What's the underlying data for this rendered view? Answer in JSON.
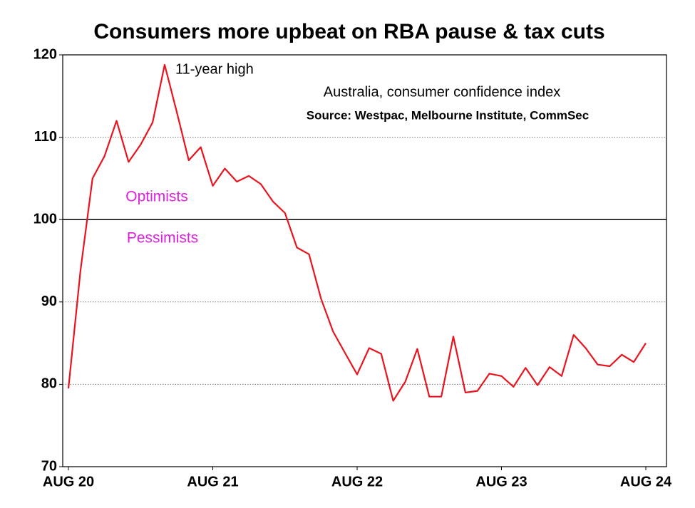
{
  "chart_data": {
    "type": "line",
    "title": "Consumers more upbeat on RBA pause & tax cuts",
    "subtitle": "Australia, consumer confidence index",
    "source": "Source: Westpac, Melbourne Institute, CommSec",
    "annotations": [
      "11-year high",
      "Optimists",
      "Pessimists"
    ],
    "categories": [
      "AUG 20",
      null,
      null,
      null,
      null,
      null,
      null,
      null,
      null,
      null,
      null,
      null,
      "AUG 21",
      null,
      null,
      null,
      null,
      null,
      null,
      null,
      null,
      null,
      null,
      null,
      "AUG 22",
      null,
      null,
      null,
      null,
      null,
      null,
      null,
      null,
      null,
      null,
      null,
      "AUG 23",
      null,
      null,
      null,
      null,
      null,
      null,
      null,
      null,
      null,
      null,
      null,
      "AUG 24"
    ],
    "series": [
      {
        "color": "#e8141e",
        "values": [
          79.5,
          93.8,
          105.0,
          107.7,
          112.0,
          107.0,
          109.1,
          111.8,
          118.8,
          113.1,
          107.2,
          108.8,
          104.1,
          106.2,
          104.6,
          105.3,
          104.3,
          102.2,
          100.8,
          96.6,
          95.8,
          90.4,
          86.4,
          83.8,
          81.2,
          84.4,
          83.7,
          78.0,
          80.3,
          84.3,
          78.5,
          78.5,
          85.8,
          79.0,
          79.2,
          81.3,
          81.0,
          79.7,
          82.0,
          79.9,
          82.1,
          81.0,
          86.0,
          84.4,
          82.4,
          82.2,
          83.6,
          82.7,
          85.0
        ]
      }
    ],
    "reference_line": 100,
    "ylim": [
      70,
      120
    ],
    "yticks": [
      70,
      80,
      90,
      100,
      110,
      120
    ],
    "grid": true
  }
}
